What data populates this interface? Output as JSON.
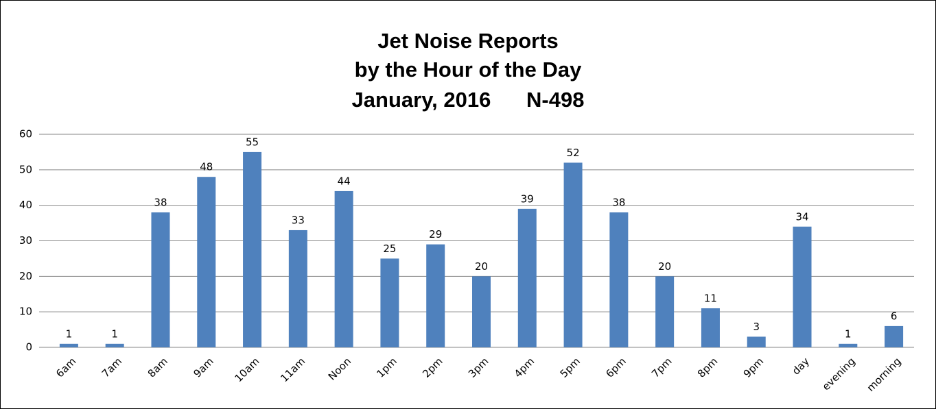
{
  "chart_data": {
    "type": "bar",
    "title": [
      "Jet Noise Reports",
      "by the Hour of the Day",
      "January, 2016      N-498"
    ],
    "categories": [
      "6am",
      "7am",
      "8am",
      "9am",
      "10am",
      "11am",
      "Noon",
      "1pm",
      "2pm",
      "3pm",
      "4pm",
      "5pm",
      "6pm",
      "7pm",
      "8pm",
      "9pm",
      "day",
      "evening",
      "morning"
    ],
    "values": [
      1,
      1,
      38,
      48,
      55,
      33,
      44,
      25,
      29,
      20,
      39,
      52,
      38,
      20,
      11,
      3,
      34,
      1,
      6
    ],
    "color": "#4f81bd",
    "ylim": [
      0,
      60
    ],
    "yticks": [
      0,
      10,
      20,
      30,
      40,
      50,
      60
    ],
    "grid": true
  }
}
